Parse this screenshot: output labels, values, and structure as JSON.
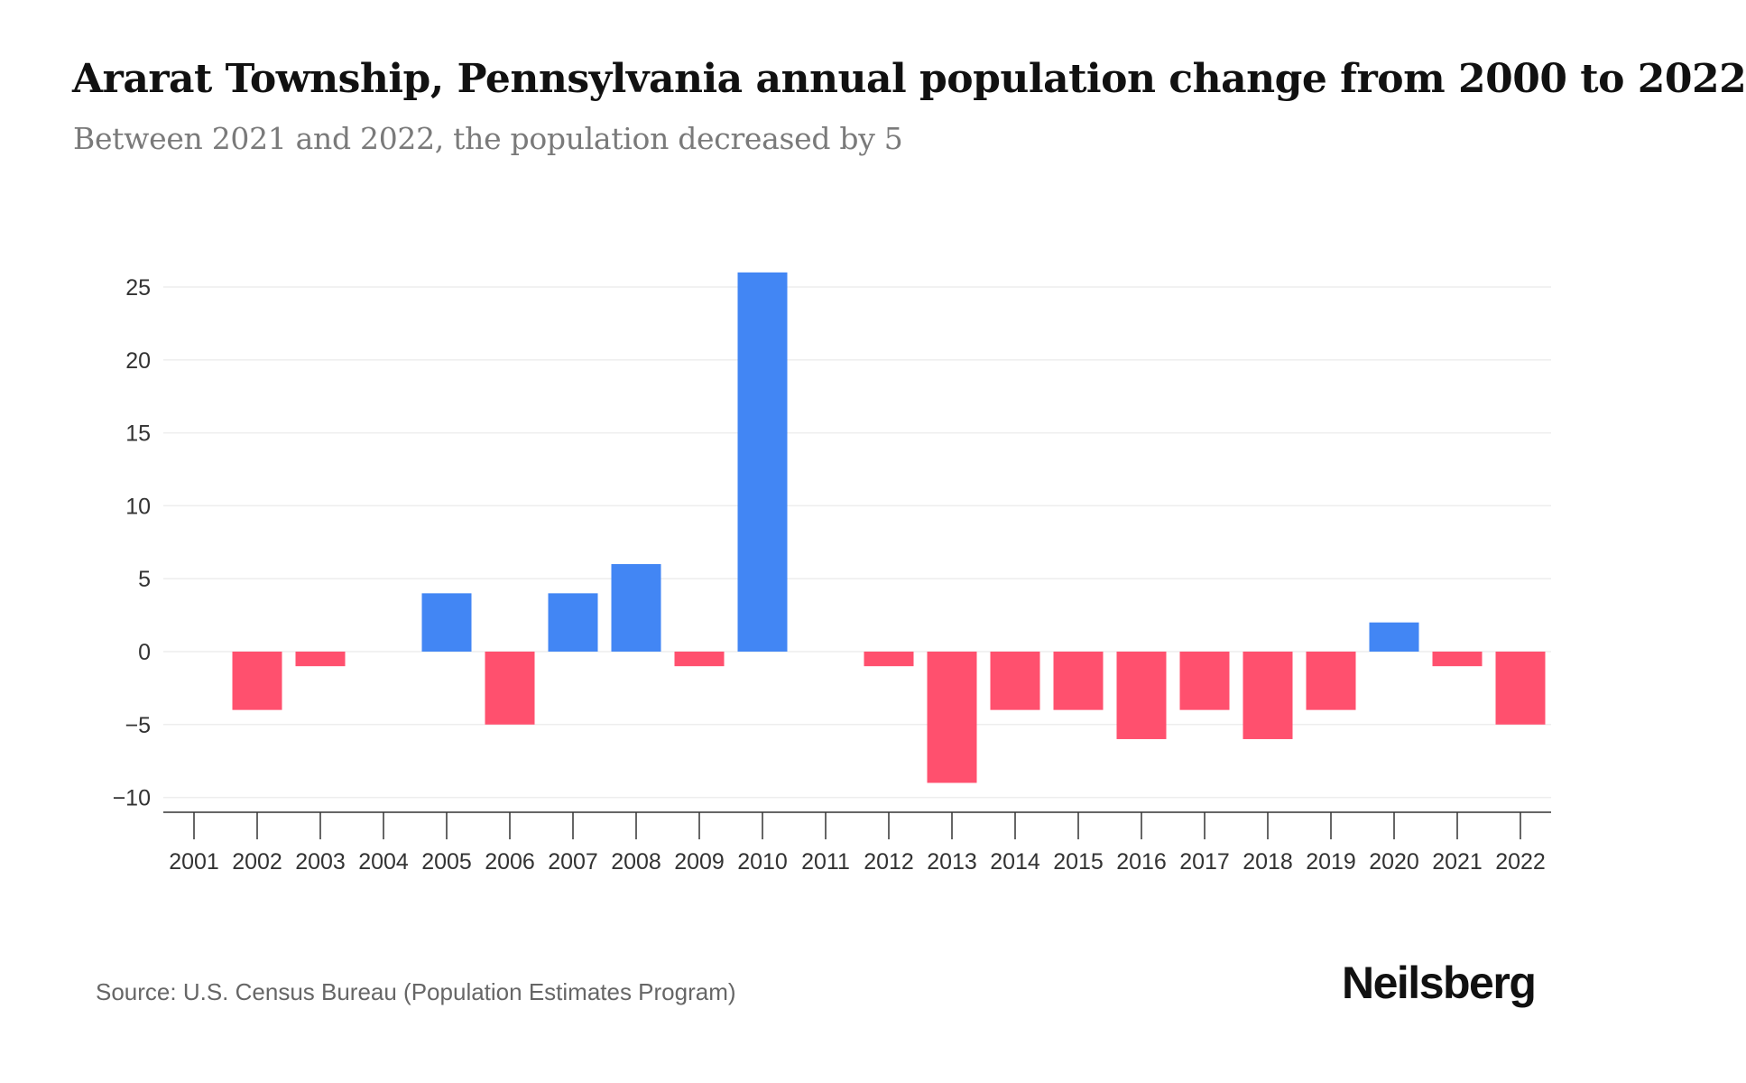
{
  "header": {
    "title": "Ararat Township, Pennsylvania annual population change from 2000 to 2022",
    "subtitle": "Between 2021 and 2022, the population decreased by 5"
  },
  "footer": {
    "source": "Source: U.S. Census Bureau (Population Estimates Program)",
    "brand": "Neilsberg"
  },
  "colors": {
    "positive": "#4286f4",
    "negative": "#ff506e",
    "grid": "#eeeeee",
    "axis": "#333333"
  },
  "chart_data": {
    "type": "bar",
    "title": "Ararat Township, Pennsylvania annual population change from 2000 to 2022",
    "subtitle": "Between 2021 and 2022, the population decreased by 5",
    "xlabel": "",
    "ylabel": "",
    "categories": [
      "2001",
      "2002",
      "2003",
      "2004",
      "2005",
      "2006",
      "2007",
      "2008",
      "2009",
      "2010",
      "2011",
      "2012",
      "2013",
      "2014",
      "2015",
      "2016",
      "2017",
      "2018",
      "2019",
      "2020",
      "2021",
      "2022"
    ],
    "values": [
      0,
      -4,
      -1,
      0,
      4,
      -5,
      4,
      6,
      -1,
      26,
      0,
      -1,
      -9,
      -4,
      -4,
      -6,
      -4,
      -6,
      -4,
      2,
      -1,
      -5
    ],
    "yticks": [
      25,
      20,
      15,
      10,
      5,
      0,
      -5,
      -10
    ],
    "ytick_labels": [
      "25",
      "20",
      "15",
      "10",
      "5",
      "0",
      "−5",
      "−10"
    ],
    "ylim": [
      -10,
      25
    ],
    "grid": true,
    "legend": "none"
  }
}
